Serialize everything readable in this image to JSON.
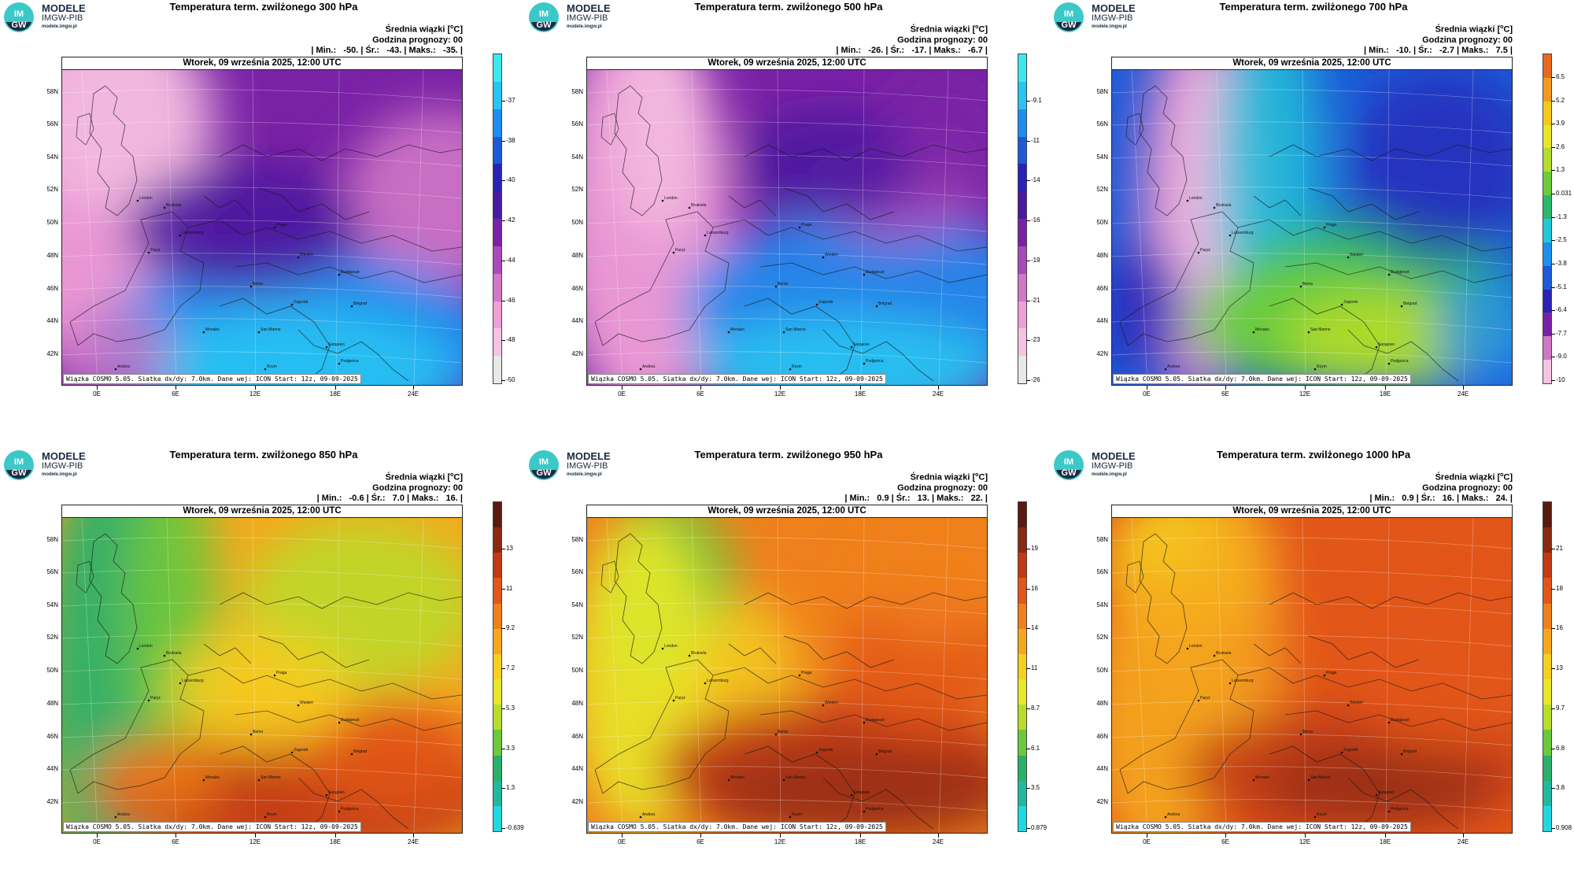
{
  "brand": {
    "line1": "MODELE",
    "line2": "IMGW-PIB",
    "line3": "modele.imgw.pl",
    "logo_text": "IM GW"
  },
  "common": {
    "legend_title": "Średnia wiązki [°C]",
    "legend_unit_prefix": "Średnia wiązki [",
    "legend_unit_sup": "o",
    "legend_unit_suffix": "C]",
    "forecast_hour": "Godzina prognozy: 00",
    "map_date": "Wtorek, 09 września 2025, 12:00 UTC",
    "footer": "Wiązka COSMO 5.05. Siatka dx/dy: 7.0km. Dane wej: ICON Start: 12z, 09-09-2025",
    "lat_labels": [
      "58N",
      "56N",
      "54N",
      "52N",
      "50N",
      "48N",
      "46N",
      "44N",
      "42N"
    ],
    "lon_labels": [
      "0E",
      "6E",
      "12E",
      "18E",
      "24E"
    ],
    "cities": [
      "London",
      "Bruksela",
      "Luksemburg",
      "Paryż",
      "Praga",
      "Wiedeń",
      "Budapeszt",
      "Berno",
      "Zagrzeb",
      "Belgrad",
      "Monako",
      "San Marino",
      "Sarajewo",
      "Podgorica",
      "Rzym",
      "Andora"
    ]
  },
  "panels": [
    {
      "title": "Temperatura term. zwilżonego 300 hPa",
      "stats": "| Min.:   -50. | Śr.:   -43. | Maks.:   -35. |",
      "colorbar_labels": [
        "-37",
        "-38",
        "-40",
        "-42",
        "-44",
        "-46",
        "-48",
        "-50"
      ],
      "palette": [
        "#3ee8ee",
        "#28c4f2",
        "#1e8ef0",
        "#1c5ad8",
        "#2a22b4",
        "#4a1aa0",
        "#7a22a6",
        "#a84aba",
        "#d077c6",
        "#ef9ed6",
        "#f5c4e3",
        "#e8e8e8"
      ],
      "scheme": "cold300"
    },
    {
      "title": "Temperatura term. zwilżonego 500 hPa",
      "stats": "| Min.:   -26. | Śr.:   -17. | Maks.:   -6.7 |",
      "colorbar_labels": [
        "-9.1",
        "-11",
        "-14",
        "-16",
        "-19",
        "-21",
        "-23",
        "-26"
      ],
      "palette": [
        "#3ee8ee",
        "#28c4f2",
        "#1e8ef0",
        "#1c5ad8",
        "#2a22b4",
        "#4a1aa0",
        "#7a22a6",
        "#a84aba",
        "#d077c6",
        "#ef9ed6",
        "#f5c4e3",
        "#e8e8e8"
      ],
      "scheme": "cold500"
    },
    {
      "title": "Temperatura term. zwilżonego 700 hPa",
      "stats": "| Min.:   -10. | Śr.:   -2.7 | Maks.:   7.5 |",
      "colorbar_labels": [
        "6.5",
        "5.2",
        "3.9",
        "2.6",
        "1.3",
        "0.031",
        "-1.3",
        "-2.5",
        "-3.8",
        "-5.1",
        "-6.4",
        "-7.7",
        "-9.0",
        "-10"
      ],
      "palette": [
        "#e86a1c",
        "#f29a1e",
        "#f5c81e",
        "#e8e42a",
        "#b4dc2a",
        "#6ccc3c",
        "#2ab86a",
        "#22c8d8",
        "#1e8ef0",
        "#1c5ad8",
        "#2a22b4",
        "#7a22a6",
        "#d077c6",
        "#f5c4e3"
      ],
      "scheme": "mid700"
    },
    {
      "title": "Temperatura term. zwilżonego 850 hPa",
      "stats": "| Min.:   -0.6 | Śr.:   7.0 | Maks.:   16. |",
      "colorbar_labels": [
        "13",
        "11",
        "9.2",
        "7.2",
        "5.3",
        "3.3",
        "1.3",
        "-0.639"
      ],
      "palette": [
        "#5a1a10",
        "#8a2a12",
        "#c23a14",
        "#e2561a",
        "#f0801c",
        "#f5a81e",
        "#f5d020",
        "#e8e828",
        "#b8dc2c",
        "#6cc83c",
        "#2ab06a",
        "#22b8a0",
        "#22d8e0"
      ],
      "scheme": "warm850"
    },
    {
      "title": "Temperatura term. zwilżonego 950 hPa",
      "stats": "| Min.:   0.9 | Śr.:   13. | Maks.:   22. |",
      "colorbar_labels": [
        "19",
        "16",
        "14",
        "11",
        "8.7",
        "6.1",
        "3.5",
        "0.879"
      ],
      "palette": [
        "#5a1a10",
        "#8a2a12",
        "#c23a14",
        "#e2561a",
        "#f0801c",
        "#f5a81e",
        "#f5d020",
        "#e8e828",
        "#b8dc2c",
        "#6cc83c",
        "#2ab06a",
        "#22b8a0",
        "#22d8e0"
      ],
      "scheme": "warm950"
    },
    {
      "title": "Temperatura term. zwilżonego 1000 hPa",
      "stats": "| Min.:   0.9 | Śr.:   16. | Maks.:   24. |",
      "colorbar_labels": [
        "21",
        "18",
        "16",
        "13",
        "9.7",
        "6.8",
        "3.8",
        "0.908"
      ],
      "palette": [
        "#5a1a10",
        "#8a2a12",
        "#c23a14",
        "#e2561a",
        "#f0801c",
        "#f5a81e",
        "#f5d020",
        "#e8e828",
        "#b8dc2c",
        "#6cc83c",
        "#2ab06a",
        "#22b8a0",
        "#22d8e0"
      ],
      "scheme": "warm1000"
    }
  ]
}
